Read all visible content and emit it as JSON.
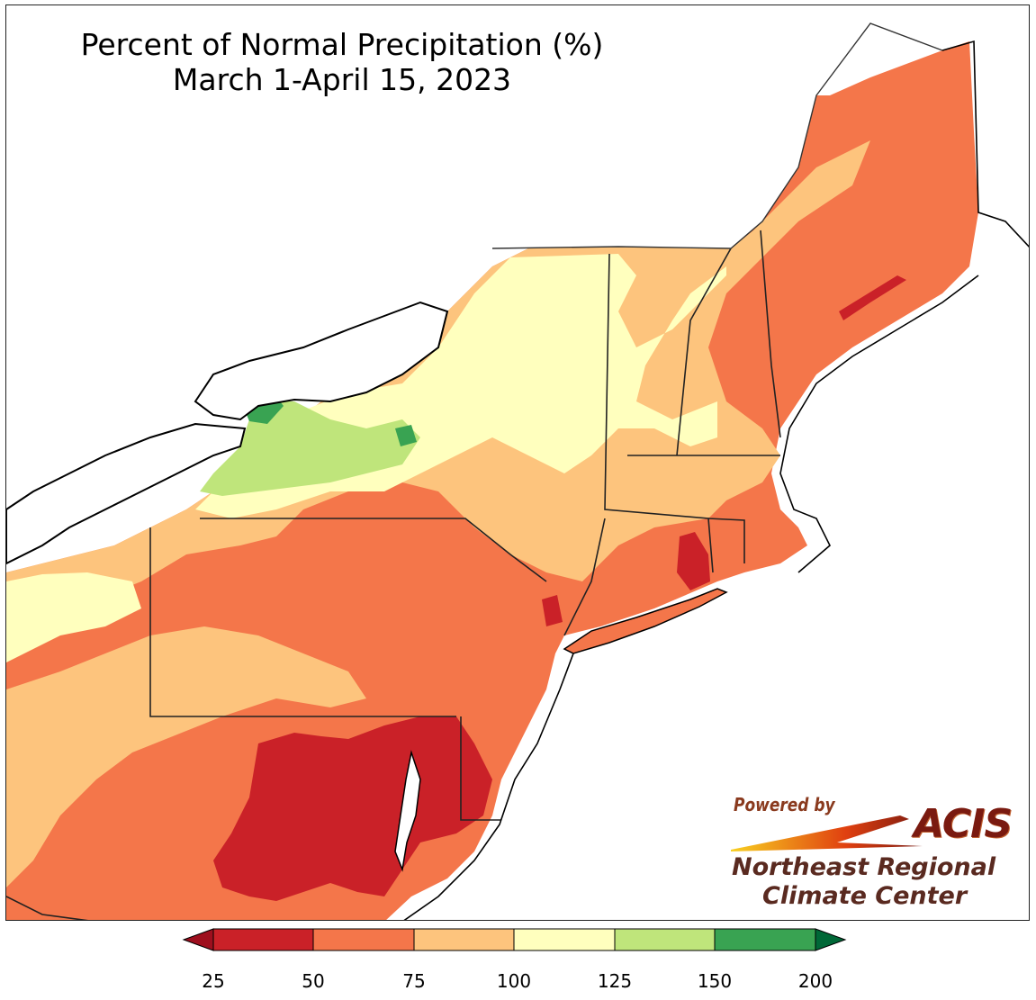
{
  "title": {
    "line1": "Percent of Normal Precipitation (%)",
    "line2": "March 1-April 15, 2023"
  },
  "branding": {
    "powered_by": "Powered by",
    "acis": "ACIS",
    "org_line1": "Northeast Regional",
    "org_line2": "Climate Center"
  },
  "legend": {
    "breaks": [
      "25",
      "50",
      "75",
      "100",
      "125",
      "150",
      "200"
    ],
    "colors": [
      "#9e0f1e",
      "#ca2128",
      "#f4764a",
      "#fdc47d",
      "#ffffbe",
      "#bfe57b",
      "#39a352",
      "#006837"
    ]
  },
  "map_regions": {
    "dominant_dry_colors": [
      "#ca2128",
      "#f4764a",
      "#fdc47d"
    ],
    "wet_colors": [
      "#ffffbe",
      "#bfe57b",
      "#39a352"
    ]
  }
}
